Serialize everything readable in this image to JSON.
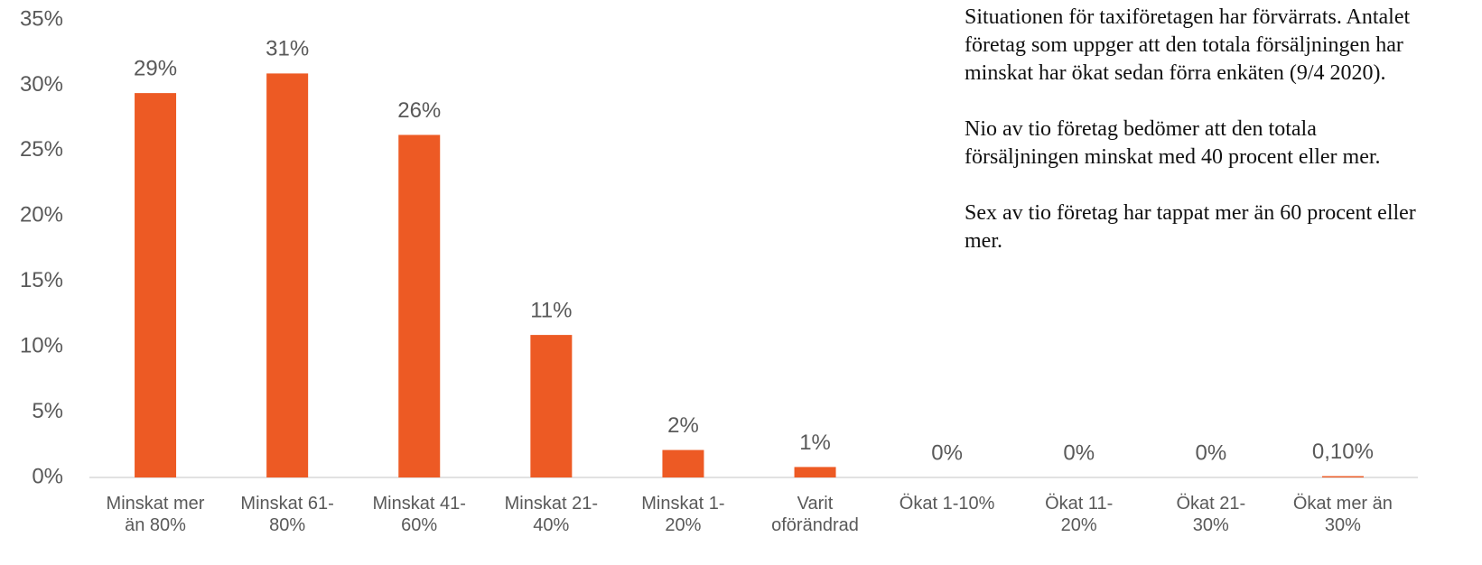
{
  "chart_data": {
    "type": "bar",
    "categories": [
      "Minskat mer\nän 80%",
      "Minskat 61-\n80%",
      "Minskat 41-\n60%",
      "Minskat 21-\n40%",
      "Minskat 1-\n20%",
      "Varit\noförändrad",
      "Ökat 1-10%",
      "Ökat 11-\n20%",
      "Ökat 21-\n30%",
      "Ökat mer än\n30%"
    ],
    "values": [
      29.4,
      30.9,
      26.2,
      10.9,
      2.1,
      0.8,
      0,
      0,
      0,
      0.1
    ],
    "value_labels": [
      "29%",
      "31%",
      "26%",
      "11%",
      "2%",
      "1%",
      "0%",
      "0%",
      "0%",
      "0,10%"
    ],
    "color": "#ed5a24",
    "ylim": [
      0,
      35
    ],
    "yticks": [
      {
        "value": 0,
        "label": "0%"
      },
      {
        "value": 5,
        "label": "5%"
      },
      {
        "value": 10,
        "label": "10%"
      },
      {
        "value": 15,
        "label": "15%"
      },
      {
        "value": 20,
        "label": "20%"
      },
      {
        "value": 25,
        "label": "25%"
      },
      {
        "value": 30,
        "label": "30%"
      },
      {
        "value": 35,
        "label": "35%"
      }
    ],
    "grid": false,
    "annotations": [
      "Situationen för taxiföretagen har förvärrats. Antalet företag som uppger att den totala försäljningen har minskat har ökat sedan förra enkäten (9/4 2020).",
      "Nio av tio företag bedömer att den totala försäljningen minskat med 40 procent eller mer.",
      "Sex av tio företag har tappat mer än 60 procent eller mer."
    ]
  }
}
